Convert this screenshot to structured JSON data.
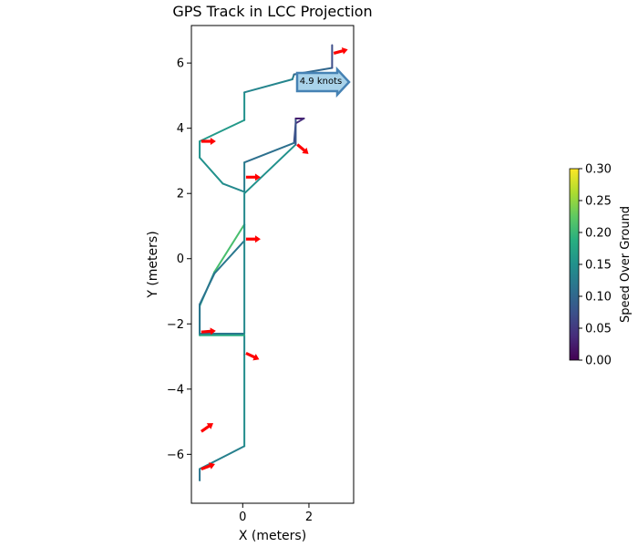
{
  "chart_data": {
    "type": "line",
    "title": "GPS Track in LCC Projection",
    "xlabel": "X (meters)",
    "ylabel": "Y (meters)",
    "xlim": [
      -1.55,
      3.35
    ],
    "ylim": [
      -7.5,
      7.15
    ],
    "xticks": [
      0,
      2
    ],
    "xtick_labels": [
      "0",
      "2"
    ],
    "yticks": [
      -6,
      -4,
      -2,
      0,
      2,
      4,
      6
    ],
    "ytick_labels": [
      "−6",
      "−4",
      "−2",
      "0",
      "2",
      "4",
      "6"
    ],
    "track": {
      "name": "GPS track colored by speed",
      "points": [
        {
          "x": -1.3,
          "y": -6.8,
          "speed": 0.11
        },
        {
          "x": -1.3,
          "y": -6.45,
          "speed": 0.12
        },
        {
          "x": 0.05,
          "y": -5.75,
          "speed": 0.14
        },
        {
          "x": 0.05,
          "y": -2.95,
          "speed": 0.15
        },
        {
          "x": 0.05,
          "y": -2.35,
          "speed": 0.13
        },
        {
          "x": -1.3,
          "y": -2.35,
          "speed": 0.24
        },
        {
          "x": -1.3,
          "y": -1.45,
          "speed": 0.11
        },
        {
          "x": -0.85,
          "y": -0.4,
          "speed": 0.22
        },
        {
          "x": 0.05,
          "y": 1.05,
          "speed": 0.2
        },
        {
          "x": 0.05,
          "y": 0.55,
          "speed": 0.12
        },
        {
          "x": -0.85,
          "y": -0.45,
          "speed": 0.12
        },
        {
          "x": -1.3,
          "y": -1.4,
          "speed": 0.11
        },
        {
          "x": -1.3,
          "y": -2.3,
          "speed": 0.12
        },
        {
          "x": 0.05,
          "y": -2.3,
          "speed": 0.12
        },
        {
          "x": 0.05,
          "y": 2.0,
          "speed": 0.16
        },
        {
          "x": 1.6,
          "y": 3.5,
          "speed": 0.14
        },
        {
          "x": 1.6,
          "y": 4.3,
          "speed": 0.02
        },
        {
          "x": 1.85,
          "y": 4.3,
          "speed": 0.03
        },
        {
          "x": 1.6,
          "y": 4.15,
          "speed": 0.05
        },
        {
          "x": 1.55,
          "y": 3.55,
          "speed": 0.1
        },
        {
          "x": 0.05,
          "y": 2.95,
          "speed": 0.12
        },
        {
          "x": 0.05,
          "y": 2.05,
          "speed": 0.13
        },
        {
          "x": -0.6,
          "y": 2.3,
          "speed": 0.15
        },
        {
          "x": -1.3,
          "y": 3.1,
          "speed": 0.15
        },
        {
          "x": -1.3,
          "y": 3.6,
          "speed": 0.15
        },
        {
          "x": 0.05,
          "y": 4.25,
          "speed": 0.17
        },
        {
          "x": 0.05,
          "y": 5.1,
          "speed": 0.13
        },
        {
          "x": 1.5,
          "y": 5.5,
          "speed": 0.14
        },
        {
          "x": 1.55,
          "y": 5.65,
          "speed": 0.11
        },
        {
          "x": 2.7,
          "y": 5.85,
          "speed": 0.09
        },
        {
          "x": 2.7,
          "y": 6.55,
          "speed": 0.05
        }
      ]
    },
    "heading_arrows": [
      {
        "x": 2.75,
        "y": 6.3,
        "heading_deg": 75
      },
      {
        "x": 1.65,
        "y": 3.5,
        "heading_deg": 130
      },
      {
        "x": -1.25,
        "y": 3.6,
        "heading_deg": 90
      },
      {
        "x": 0.1,
        "y": 2.5,
        "heading_deg": 90
      },
      {
        "x": 0.1,
        "y": 0.6,
        "heading_deg": 90
      },
      {
        "x": -1.25,
        "y": -2.25,
        "heading_deg": 85
      },
      {
        "x": 0.1,
        "y": -2.9,
        "heading_deg": 115
      },
      {
        "x": -1.25,
        "y": -5.3,
        "heading_deg": 55
      },
      {
        "x": -1.25,
        "y": -6.45,
        "heading_deg": 70
      }
    ],
    "annotation": {
      "text": "4.9 knots",
      "x": 2.35,
      "y": 5.5
    },
    "colorbar": {
      "label": "Speed Over Ground",
      "colormap": "viridis",
      "vmin": 0.0,
      "vmax": 0.3,
      "ticks": [
        0.0,
        0.05,
        0.1,
        0.15,
        0.2,
        0.25,
        0.3
      ],
      "tick_labels": [
        "0.00",
        "0.05",
        "0.10",
        "0.15",
        "0.20",
        "0.25",
        "0.30"
      ]
    },
    "colors": {
      "arrow": "#ff0000",
      "annotation_fill": "#a9d3ea",
      "annotation_edge": "#4682b4"
    }
  }
}
